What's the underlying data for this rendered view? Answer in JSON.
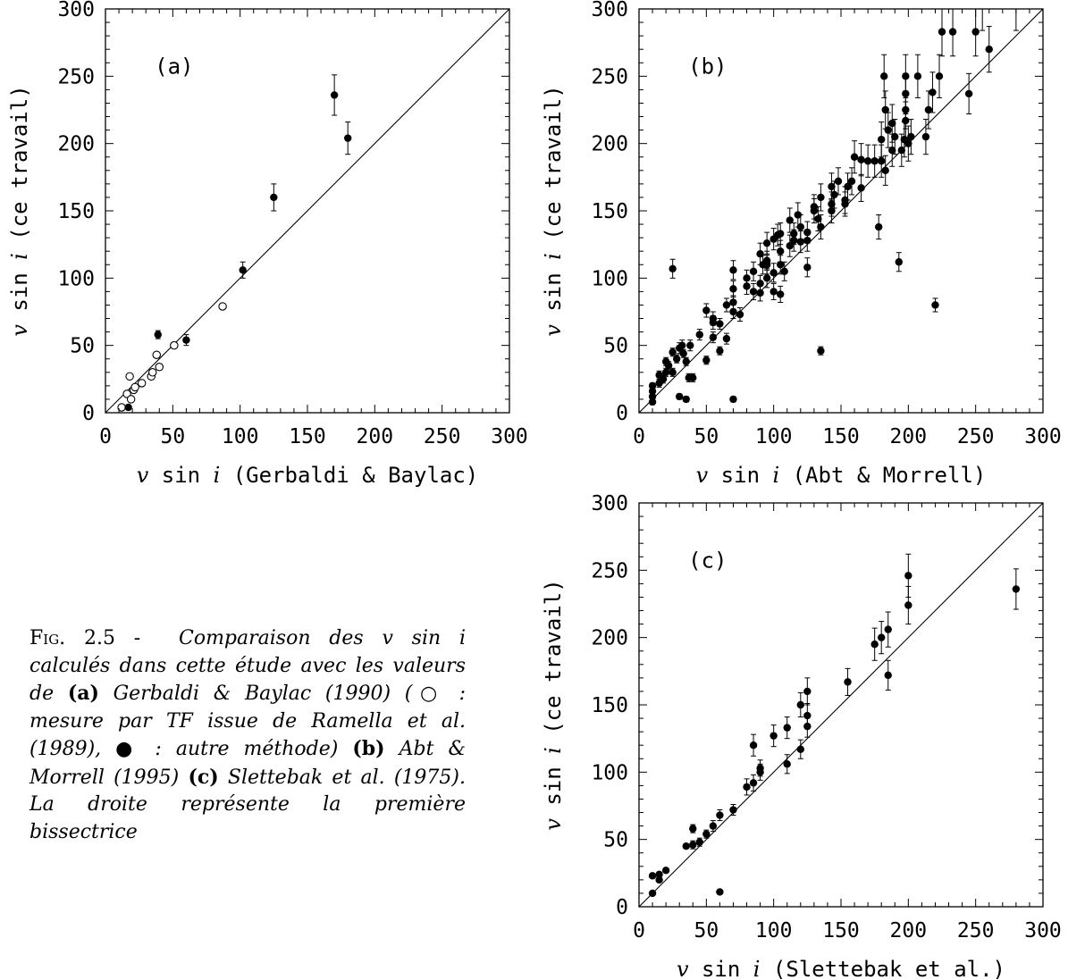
{
  "caption": {
    "fig_prefix": "Fig.",
    "fig_number": "2.5 -",
    "lead": "Comparaison des v sin i calculés dans cette étude avec les valeurs de",
    "a_label": "(a)",
    "a_text": "Gerbaldi & Baylac (1990) (○ : mesure par TF issue de Ramella et al. (1989), ● : autre méthode)",
    "b_label": "(b)",
    "b_text": "Abt & Morrell (1995)",
    "c_label": "(c)",
    "c_text": "Slettebak et al. (1975). La droite représente la première bissectrice"
  },
  "chart_data": [
    {
      "id": "a",
      "type": "scatter",
      "panel_label": "(a)",
      "x_title_italic": "v",
      "x_title": "sin",
      "x_title_italic2": "i",
      "x_title_rest": "(Gerbaldi & Baylac)",
      "y_title_italic": "v",
      "y_title": "sin",
      "y_title_italic2": "i",
      "y_title_rest": "(ce travail)",
      "xlim": [
        0,
        300
      ],
      "ylim": [
        0,
        300
      ],
      "xticks": [
        0,
        50,
        100,
        150,
        200,
        250,
        300
      ],
      "yticks": [
        0,
        50,
        100,
        150,
        200,
        250,
        300
      ],
      "diagonal": true,
      "series": [
        {
          "marker": "open",
          "points": [
            [
              12,
              4
            ],
            [
              16,
              14
            ],
            [
              18,
              27
            ],
            [
              19,
              10
            ],
            [
              21,
              17
            ],
            [
              22,
              19
            ],
            [
              27,
              22
            ],
            [
              34,
              27
            ],
            [
              35,
              30
            ],
            [
              40,
              34
            ],
            [
              51,
              50
            ],
            [
              87,
              79
            ],
            [
              38,
              43
            ]
          ]
        },
        {
          "marker": "filled",
          "points": [
            [
              17,
              4,
              0
            ],
            [
              39,
              58,
              3
            ],
            [
              60,
              54,
              4
            ],
            [
              102,
              106,
              6
            ],
            [
              125,
              160,
              10
            ],
            [
              170,
              236,
              15
            ],
            [
              180,
              204,
              12
            ]
          ]
        }
      ]
    },
    {
      "id": "b",
      "type": "scatter",
      "panel_label": "(b)",
      "x_title_italic": "v",
      "x_title": "sin",
      "x_title_italic2": "i",
      "x_title_rest": "(Abt & Morrell)",
      "y_title_italic": "v",
      "y_title": "sin",
      "y_title_italic2": "i",
      "y_title_rest": "(ce travail)",
      "xlim": [
        0,
        300
      ],
      "ylim": [
        0,
        300
      ],
      "xticks": [
        0,
        50,
        100,
        150,
        200,
        250,
        300
      ],
      "yticks": [
        0,
        50,
        100,
        150,
        200,
        250,
        300
      ],
      "diagonal": true,
      "series": [
        {
          "marker": "filled",
          "points": [
            [
              10,
              8,
              2
            ],
            [
              10,
              12,
              2
            ],
            [
              10,
              16,
              2
            ],
            [
              10,
              20,
              2
            ],
            [
              15,
              22,
              3
            ],
            [
              15,
              28,
              3
            ],
            [
              18,
              25,
              3
            ],
            [
              20,
              30,
              3
            ],
            [
              20,
              38,
              3
            ],
            [
              22,
              35,
              3
            ],
            [
              25,
              30,
              3
            ],
            [
              25,
              45,
              3
            ],
            [
              25,
              107,
              7
            ],
            [
              28,
              40,
              3
            ],
            [
              30,
              48,
              4
            ],
            [
              30,
              12,
              2
            ],
            [
              32,
              50,
              4
            ],
            [
              33,
              44,
              3
            ],
            [
              35,
              10,
              2
            ],
            [
              35,
              38,
              3
            ],
            [
              37,
              26,
              3
            ],
            [
              38,
              50,
              4
            ],
            [
              40,
              26,
              3
            ],
            [
              45,
              58,
              4
            ],
            [
              50,
              39,
              3
            ],
            [
              50,
              76,
              5
            ],
            [
              55,
              56,
              4
            ],
            [
              55,
              70,
              5
            ],
            [
              55,
              67,
              5
            ],
            [
              60,
              46,
              3
            ],
            [
              60,
              66,
              4
            ],
            [
              65,
              55,
              4
            ],
            [
              65,
              80,
              5
            ],
            [
              70,
              10,
              2
            ],
            [
              70,
              75,
              5
            ],
            [
              70,
              82,
              5
            ],
            [
              70,
              92,
              6
            ],
            [
              70,
              106,
              7
            ],
            [
              75,
              73,
              5
            ],
            [
              80,
              94,
              6
            ],
            [
              80,
              100,
              6
            ],
            [
              85,
              90,
              6
            ],
            [
              85,
              105,
              7
            ],
            [
              90,
              89,
              6
            ],
            [
              90,
              118,
              8
            ],
            [
              90,
              96,
              6
            ],
            [
              92,
              110,
              7
            ],
            [
              95,
              100,
              7
            ],
            [
              95,
              113,
              7
            ],
            [
              95,
              126,
              8
            ],
            [
              95,
              110,
              7
            ],
            [
              100,
              90,
              6
            ],
            [
              100,
              104,
              7
            ],
            [
              100,
              129,
              8
            ],
            [
              103,
              132,
              8
            ],
            [
              105,
              88,
              6
            ],
            [
              105,
              110,
              7
            ],
            [
              105,
              120,
              8
            ],
            [
              105,
              133,
              8
            ],
            [
              108,
              105,
              7
            ],
            [
              112,
              143,
              9
            ],
            [
              112,
              124,
              8
            ],
            [
              115,
              128,
              8
            ],
            [
              115,
              133,
              8
            ],
            [
              118,
              147,
              9
            ],
            [
              120,
              138,
              9
            ],
            [
              120,
              127,
              8
            ],
            [
              125,
              128,
              8
            ],
            [
              125,
              134,
              8
            ],
            [
              125,
              108,
              7
            ],
            [
              130,
              150,
              9
            ],
            [
              130,
              153,
              9
            ],
            [
              133,
              144,
              9
            ],
            [
              135,
              46,
              3
            ],
            [
              135,
              138,
              9
            ],
            [
              135,
              160,
              10
            ],
            [
              143,
              150,
              9
            ],
            [
              143,
              155,
              9
            ],
            [
              143,
              168,
              10
            ],
            [
              145,
              162,
              10
            ],
            [
              148,
              172,
              10
            ],
            [
              153,
              155,
              9
            ],
            [
              153,
              158,
              10
            ],
            [
              155,
              168,
              10
            ],
            [
              158,
              172,
              10
            ],
            [
              160,
              190,
              12
            ],
            [
              165,
              167,
              10
            ],
            [
              165,
              188,
              12
            ],
            [
              170,
              187,
              12
            ],
            [
              175,
              187,
              12
            ],
            [
              178,
              138,
              9
            ],
            [
              180,
              187,
              12
            ],
            [
              180,
              203,
              13
            ],
            [
              182,
              250,
              16
            ],
            [
              183,
              225,
              14
            ],
            [
              183,
              180,
              11
            ],
            [
              185,
              210,
              13
            ],
            [
              188,
              215,
              14
            ],
            [
              188,
              195,
              12
            ],
            [
              190,
              205,
              13
            ],
            [
              193,
              112,
              7
            ],
            [
              195,
              195,
              12
            ],
            [
              197,
              203,
              13
            ],
            [
              198,
              250,
              16
            ],
            [
              198,
              237,
              15
            ],
            [
              198,
              225,
              14
            ],
            [
              198,
              217,
              14
            ],
            [
              200,
              200,
              13
            ],
            [
              202,
              205,
              13
            ],
            [
              207,
              250,
              16
            ],
            [
              213,
              205,
              13
            ],
            [
              215,
              225,
              14
            ],
            [
              218,
              238,
              15
            ],
            [
              220,
              80,
              5
            ],
            [
              223,
              250,
              16
            ],
            [
              225,
              283,
              18
            ],
            [
              233,
              283,
              18
            ],
            [
              245,
              237,
              15
            ],
            [
              250,
              283,
              18
            ],
            [
              255,
              303,
              19
            ],
            [
              260,
              270,
              17
            ],
            [
              280,
              303,
              19
            ]
          ]
        }
      ]
    },
    {
      "id": "c",
      "type": "scatter",
      "panel_label": "(c)",
      "x_title_italic": "v",
      "x_title": "sin",
      "x_title_italic2": "i",
      "x_title_rest": "(Slettebak et al.)",
      "y_title_italic": "v",
      "y_title": "sin",
      "y_title_italic2": "i",
      "y_title_rest": "(ce travail)",
      "xlim": [
        0,
        300
      ],
      "ylim": [
        0,
        300
      ],
      "xticks": [
        0,
        50,
        100,
        150,
        200,
        250,
        300
      ],
      "yticks": [
        0,
        50,
        100,
        150,
        200,
        250,
        300
      ],
      "diagonal": true,
      "series": [
        {
          "marker": "filled",
          "points": [
            [
              10,
              10,
              0
            ],
            [
              10,
              23,
              0
            ],
            [
              15,
              20,
              0
            ],
            [
              15,
              24,
              0
            ],
            [
              20,
              27,
              0
            ],
            [
              35,
              45,
              0
            ],
            [
              40,
              46,
              3
            ],
            [
              40,
              58,
              3
            ],
            [
              45,
              48,
              3
            ],
            [
              50,
              54,
              3
            ],
            [
              55,
              60,
              4
            ],
            [
              60,
              11,
              0
            ],
            [
              60,
              68,
              4
            ],
            [
              70,
              72,
              4
            ],
            [
              80,
              89,
              6
            ],
            [
              85,
              92,
              6
            ],
            [
              85,
              120,
              8
            ],
            [
              90,
              100,
              6
            ],
            [
              90,
              103,
              6
            ],
            [
              100,
              127,
              8
            ],
            [
              110,
              106,
              7
            ],
            [
              110,
              133,
              8
            ],
            [
              120,
              117,
              7
            ],
            [
              120,
              150,
              9
            ],
            [
              125,
              134,
              8
            ],
            [
              125,
              142,
              9
            ],
            [
              125,
              160,
              10
            ],
            [
              155,
              167,
              10
            ],
            [
              175,
              195,
              12
            ],
            [
              180,
              200,
              12
            ],
            [
              185,
              172,
              11
            ],
            [
              185,
              206,
              13
            ],
            [
              200,
              224,
              14
            ],
            [
              200,
              246,
              16
            ],
            [
              280,
              236,
              15
            ]
          ]
        }
      ]
    }
  ]
}
